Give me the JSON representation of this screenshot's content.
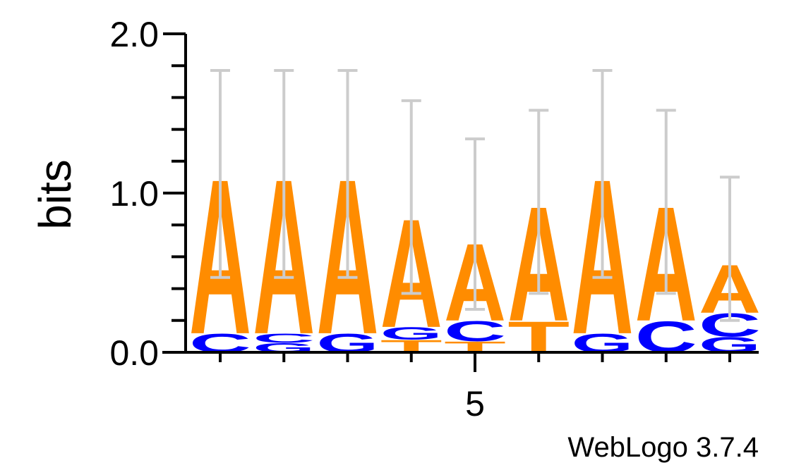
{
  "chart_data": {
    "type": "sequence-logo",
    "ylabel": "bits",
    "ylim": [
      0,
      2
    ],
    "yticks": [
      {
        "value": 0,
        "label": "0.0"
      },
      {
        "value": 1,
        "label": "1.0"
      },
      {
        "value": 2,
        "label": "2.0"
      }
    ],
    "y_minor_step": 0.2,
    "positions": [
      1,
      2,
      3,
      4,
      5,
      6,
      7,
      8,
      9
    ],
    "x_labeled_positions": [
      {
        "position": 5,
        "label": "5"
      }
    ],
    "colors": {
      "A": "#ff8c00",
      "T": "#ff8c00",
      "C": "#0000ff",
      "G": "#0000ff",
      "errorbar": "#cccccc"
    },
    "columns": [
      {
        "position": 1,
        "total": 1.12,
        "stack": [
          {
            "letter": "C",
            "height": 0.12
          },
          {
            "letter": "A",
            "height": 1.0
          }
        ],
        "error": [
          0.47,
          1.77
        ]
      },
      {
        "position": 2,
        "total": 1.12,
        "stack": [
          {
            "letter": "G",
            "height": 0.06
          },
          {
            "letter": "C",
            "height": 0.06
          },
          {
            "letter": "A",
            "height": 1.0
          }
        ],
        "error": [
          0.47,
          1.77
        ]
      },
      {
        "position": 3,
        "total": 1.12,
        "stack": [
          {
            "letter": "G",
            "height": 0.12
          },
          {
            "letter": "A",
            "height": 1.0
          }
        ],
        "error": [
          0.47,
          1.77
        ]
      },
      {
        "position": 4,
        "total": 0.86,
        "stack": [
          {
            "letter": "T",
            "height": 0.08
          },
          {
            "letter": "G",
            "height": 0.08
          },
          {
            "letter": "A",
            "height": 0.7
          }
        ],
        "error": [
          0.37,
          1.58
        ]
      },
      {
        "position": 5,
        "total": 0.7,
        "stack": [
          {
            "letter": "T",
            "height": 0.07
          },
          {
            "letter": "C",
            "height": 0.13
          },
          {
            "letter": "A",
            "height": 0.5
          }
        ],
        "error": [
          0.27,
          1.34
        ]
      },
      {
        "position": 6,
        "total": 0.94,
        "stack": [
          {
            "letter": "T",
            "height": 0.2
          },
          {
            "letter": "A",
            "height": 0.74
          }
        ],
        "error": [
          0.37,
          1.52
        ]
      },
      {
        "position": 7,
        "total": 1.12,
        "stack": [
          {
            "letter": "G",
            "height": 0.12
          },
          {
            "letter": "A",
            "height": 1.0
          }
        ],
        "error": [
          0.47,
          1.77
        ]
      },
      {
        "position": 8,
        "total": 0.94,
        "stack": [
          {
            "letter": "C",
            "height": 0.2
          },
          {
            "letter": "A",
            "height": 0.74
          }
        ],
        "error": [
          0.37,
          1.52
        ]
      },
      {
        "position": 9,
        "total": 0.56,
        "stack": [
          {
            "letter": "G",
            "height": 0.1
          },
          {
            "letter": "C",
            "height": 0.15
          },
          {
            "letter": "A",
            "height": 0.31
          }
        ],
        "error": [
          0.2,
          1.1
        ]
      }
    ]
  },
  "footer": {
    "credit": "WebLogo 3.7.4"
  }
}
